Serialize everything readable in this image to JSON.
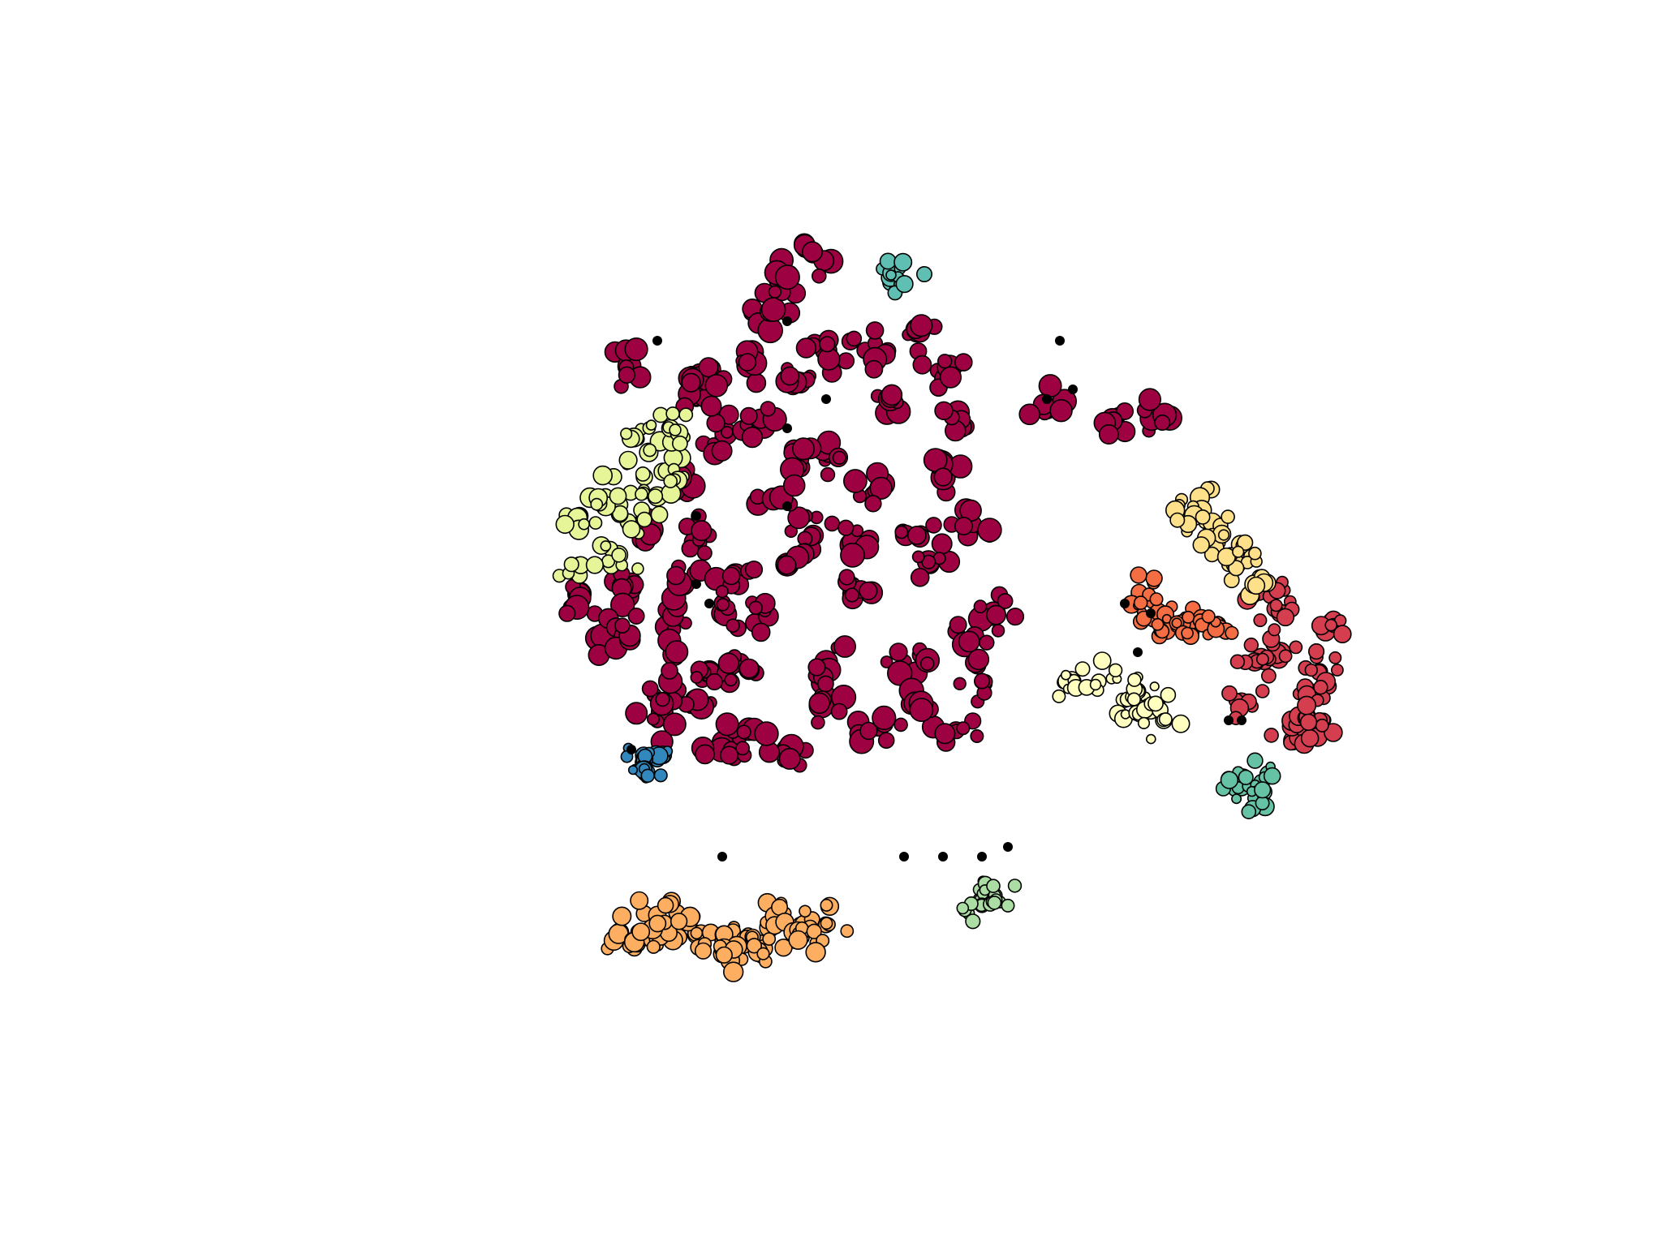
{
  "chart_data": {
    "type": "scatter",
    "title": "",
    "xlabel": "",
    "ylabel": "",
    "axes_visible": false,
    "grid": false,
    "legend": "none",
    "xlim": [
      0,
      100
    ],
    "ylim": [
      0,
      100
    ],
    "series": [
      {
        "id": "c0",
        "color": "#9e0142",
        "points": [
          [
            33,
            77
          ],
          [
            39,
            77
          ],
          [
            46,
            76
          ],
          [
            44,
            83
          ],
          [
            40,
            70
          ],
          [
            37,
            66
          ],
          [
            34,
            60
          ],
          [
            33,
            55
          ],
          [
            31,
            50
          ],
          [
            36,
            50
          ],
          [
            43,
            52
          ],
          [
            50,
            54
          ],
          [
            56,
            57
          ],
          [
            61,
            52
          ],
          [
            60,
            45
          ],
          [
            58,
            40
          ],
          [
            52,
            40
          ],
          [
            45,
            38
          ],
          [
            40,
            38
          ],
          [
            38,
            43
          ],
          [
            42,
            46
          ],
          [
            48,
            47
          ],
          [
            54,
            47
          ],
          [
            37,
            55
          ],
          [
            47,
            60
          ],
          [
            52,
            65
          ],
          [
            57,
            66
          ],
          [
            58,
            72
          ],
          [
            53,
            74
          ],
          [
            49,
            68
          ],
          [
            44,
            64
          ],
          [
            39,
            60
          ],
          [
            65,
            73
          ],
          [
            70,
            72
          ],
          [
            73,
            72
          ],
          [
            45,
            86
          ],
          [
            47,
            89
          ],
          [
            43,
            72
          ],
          [
            48,
            79
          ],
          [
            51,
            79
          ],
          [
            55,
            81
          ],
          [
            57,
            77
          ],
          [
            41,
            56
          ],
          [
            45,
            57
          ],
          [
            50,
            59
          ],
          [
            55,
            60
          ],
          [
            59,
            61
          ],
          [
            35,
            41
          ],
          [
            39,
            46
          ],
          [
            42,
            40
          ],
          [
            48,
            43
          ],
          [
            55,
            43
          ],
          [
            59,
            49
          ],
          [
            46,
            67
          ],
          [
            42,
            78
          ],
          [
            38,
            74
          ],
          [
            33,
            50
          ],
          [
            29,
            54
          ],
          [
            36,
            45
          ],
          [
            40,
            52
          ]
        ],
        "size": [
          7,
          15
        ]
      },
      {
        "id": "c1",
        "color": "#d53e4f",
        "points": [
          [
            82,
            54
          ],
          [
            83,
            48
          ],
          [
            85,
            44
          ],
          [
            87,
            51
          ],
          [
            84,
            39
          ],
          [
            81,
            47
          ],
          [
            83,
            52
          ],
          [
            86,
            46
          ],
          [
            80,
            43
          ],
          [
            85,
            40
          ],
          [
            86,
            41
          ]
        ],
        "size": [
          7,
          12
        ]
      },
      {
        "id": "c2",
        "color": "#f46d43",
        "points": [
          [
            72,
            54
          ],
          [
            73,
            53
          ],
          [
            76,
            51
          ],
          [
            74,
            52
          ],
          [
            75,
            51
          ],
          [
            77,
            51
          ],
          [
            78,
            51
          ]
        ],
        "size": [
          5,
          11
        ]
      },
      {
        "id": "c3",
        "color": "#fdae61",
        "points": [
          [
            32,
            19
          ],
          [
            34,
            19
          ],
          [
            36,
            19
          ],
          [
            38,
            19
          ],
          [
            40,
            19
          ],
          [
            42,
            19
          ],
          [
            44,
            20
          ],
          [
            46,
            20
          ],
          [
            48,
            20
          ],
          [
            43,
            17
          ],
          [
            35,
            21
          ],
          [
            46,
            19
          ],
          [
            40,
            17
          ]
        ],
        "size": [
          7,
          12
        ]
      },
      {
        "id": "c4",
        "color": "#fee08b",
        "points": [
          [
            77,
            63
          ],
          [
            78,
            60
          ],
          [
            79,
            57
          ],
          [
            81,
            55
          ],
          [
            80,
            59
          ],
          [
            76,
            61
          ]
        ],
        "size": [
          6,
          12
        ]
      },
      {
        "id": "c5",
        "color": "#ffffbf",
        "points": [
          [
            67,
            45
          ],
          [
            69,
            45
          ],
          [
            71,
            43
          ],
          [
            73,
            42
          ],
          [
            74,
            41
          ],
          [
            72,
            44
          ]
        ],
        "size": [
          5,
          11
        ]
      },
      {
        "id": "c6",
        "color": "#e6f598",
        "points": [
          [
            33,
            70
          ],
          [
            34,
            66
          ],
          [
            36,
            68
          ],
          [
            35,
            64
          ],
          [
            33,
            61
          ],
          [
            32,
            58
          ],
          [
            29,
            57
          ],
          [
            29,
            62
          ],
          [
            31,
            64
          ],
          [
            36,
            71
          ]
        ],
        "size": [
          6,
          12
        ]
      },
      {
        "id": "c7",
        "color": "#abdda4",
        "points": [
          [
            60,
            23
          ],
          [
            60,
            22
          ],
          [
            61,
            23
          ]
        ],
        "size": [
          6,
          9
        ]
      },
      {
        "id": "c8",
        "color": "#66c2a5",
        "points": [
          [
            80,
            34
          ],
          [
            79,
            35
          ],
          [
            81,
            34
          ],
          [
            82,
            35
          ]
        ],
        "size": [
          5,
          11
        ]
      },
      {
        "id": "c9",
        "color": "#3288bd",
        "points": [
          [
            35,
            37
          ],
          [
            34,
            37
          ],
          [
            34,
            36
          ]
        ],
        "size": [
          5,
          11
        ]
      },
      {
        "id": "c10",
        "color": "#5fbfb3",
        "points": [
          [
            53,
            86
          ],
          [
            54,
            86
          ]
        ],
        "size": [
          5,
          11
        ]
      },
      {
        "id": "noise",
        "color": "#000000",
        "points": [
          [
            45,
            82
          ],
          [
            48,
            74
          ],
          [
            35,
            80
          ],
          [
            38,
            62
          ],
          [
            38,
            55
          ],
          [
            45,
            63
          ],
          [
            39,
            53
          ],
          [
            45,
            71
          ],
          [
            40,
            27
          ],
          [
            54,
            27
          ],
          [
            57,
            27
          ],
          [
            62,
            28
          ],
          [
            66,
            80
          ],
          [
            67,
            75
          ],
          [
            65,
            74
          ],
          [
            71,
            53
          ],
          [
            72,
            48
          ],
          [
            73,
            52
          ],
          [
            79,
            41
          ],
          [
            80,
            41
          ],
          [
            33,
            38
          ],
          [
            60,
            27
          ]
        ],
        "size": [
          6,
          6
        ]
      }
    ]
  }
}
